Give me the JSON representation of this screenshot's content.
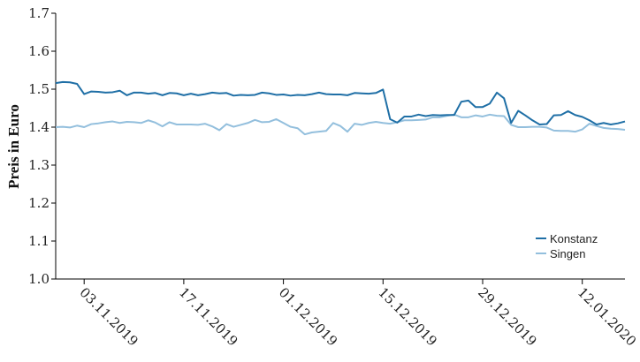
{
  "chart_data": {
    "type": "line",
    "title": "",
    "ylabel": "Preis in Euro",
    "xlabel": "",
    "ylim": [
      1.0,
      1.7
    ],
    "yticks": [
      "1.0",
      "1.1",
      "1.2",
      "1.3",
      "1.4",
      "1.5",
      "1.6",
      "1.7"
    ],
    "xlim": [
      "2019-10-30",
      "2020-01-18"
    ],
    "xticks": [
      {
        "label": "03.11.2019",
        "date": "2019-11-03"
      },
      {
        "label": "17.11.2019",
        "date": "2019-11-17"
      },
      {
        "label": "01.12.2019",
        "date": "2019-12-01"
      },
      {
        "label": "15.12.2019",
        "date": "2019-12-15"
      },
      {
        "label": "29.12.2019",
        "date": "2019-12-29"
      },
      {
        "label": "12.01.2020",
        "date": "2020-01-12"
      }
    ],
    "legend_position": "bottom-right",
    "series": [
      {
        "name": "Konstanz",
        "color": "#1f6fa6",
        "points": [
          [
            "2019-10-30",
            1.516
          ],
          [
            "2019-10-31",
            1.519
          ],
          [
            "2019-11-01",
            1.518
          ],
          [
            "2019-11-02",
            1.514
          ],
          [
            "2019-11-03",
            1.487
          ],
          [
            "2019-11-04",
            1.494
          ],
          [
            "2019-11-05",
            1.493
          ],
          [
            "2019-11-06",
            1.491
          ],
          [
            "2019-11-07",
            1.492
          ],
          [
            "2019-11-08",
            1.496
          ],
          [
            "2019-11-09",
            1.484
          ],
          [
            "2019-11-10",
            1.491
          ],
          [
            "2019-11-11",
            1.491
          ],
          [
            "2019-11-12",
            1.488
          ],
          [
            "2019-11-13",
            1.49
          ],
          [
            "2019-11-14",
            1.484
          ],
          [
            "2019-11-15",
            1.49
          ],
          [
            "2019-11-16",
            1.489
          ],
          [
            "2019-11-17",
            1.484
          ],
          [
            "2019-11-18",
            1.488
          ],
          [
            "2019-11-19",
            1.484
          ],
          [
            "2019-11-20",
            1.487
          ],
          [
            "2019-11-21",
            1.491
          ],
          [
            "2019-11-22",
            1.489
          ],
          [
            "2019-11-23",
            1.49
          ],
          [
            "2019-11-24",
            1.483
          ],
          [
            "2019-11-25",
            1.485
          ],
          [
            "2019-11-26",
            1.484
          ],
          [
            "2019-11-27",
            1.485
          ],
          [
            "2019-11-28",
            1.491
          ],
          [
            "2019-11-29",
            1.489
          ],
          [
            "2019-11-30",
            1.485
          ],
          [
            "2019-12-01",
            1.486
          ],
          [
            "2019-12-02",
            1.483
          ],
          [
            "2019-12-03",
            1.485
          ],
          [
            "2019-12-04",
            1.484
          ],
          [
            "2019-12-05",
            1.487
          ],
          [
            "2019-12-06",
            1.491
          ],
          [
            "2019-12-07",
            1.487
          ],
          [
            "2019-12-08",
            1.486
          ],
          [
            "2019-12-09",
            1.486
          ],
          [
            "2019-12-10",
            1.484
          ],
          [
            "2019-12-11",
            1.49
          ],
          [
            "2019-12-12",
            1.489
          ],
          [
            "2019-12-13",
            1.488
          ],
          [
            "2019-12-14",
            1.49
          ],
          [
            "2019-12-15",
            1.499
          ],
          [
            "2019-12-16",
            1.421
          ],
          [
            "2019-12-17",
            1.412
          ],
          [
            "2019-12-18",
            1.428
          ],
          [
            "2019-12-19",
            1.428
          ],
          [
            "2019-12-20",
            1.433
          ],
          [
            "2019-12-21",
            1.429
          ],
          [
            "2019-12-22",
            1.432
          ],
          [
            "2019-12-23",
            1.431
          ],
          [
            "2019-12-24",
            1.432
          ],
          [
            "2019-12-25",
            1.432
          ],
          [
            "2019-12-26",
            1.467
          ],
          [
            "2019-12-27",
            1.47
          ],
          [
            "2019-12-28",
            1.453
          ],
          [
            "2019-12-29",
            1.453
          ],
          [
            "2019-12-30",
            1.462
          ],
          [
            "2019-12-31",
            1.491
          ],
          [
            "2020-01-01",
            1.476
          ],
          [
            "2020-01-02",
            1.411
          ],
          [
            "2020-01-03",
            1.443
          ],
          [
            "2020-01-04",
            1.431
          ],
          [
            "2020-01-05",
            1.418
          ],
          [
            "2020-01-06",
            1.407
          ],
          [
            "2020-01-07",
            1.408
          ],
          [
            "2020-01-08",
            1.431
          ],
          [
            "2020-01-09",
            1.432
          ],
          [
            "2020-01-10",
            1.442
          ],
          [
            "2020-01-11",
            1.432
          ],
          [
            "2020-01-12",
            1.427
          ],
          [
            "2020-01-13",
            1.418
          ],
          [
            "2020-01-14",
            1.407
          ],
          [
            "2020-01-15",
            1.411
          ],
          [
            "2020-01-16",
            1.407
          ],
          [
            "2020-01-17",
            1.41
          ],
          [
            "2020-01-18",
            1.415
          ]
        ]
      },
      {
        "name": "Singen",
        "color": "#93bfdd",
        "points": [
          [
            "2019-10-30",
            1.4
          ],
          [
            "2019-10-31",
            1.401
          ],
          [
            "2019-11-01",
            1.399
          ],
          [
            "2019-11-02",
            1.404
          ],
          [
            "2019-11-03",
            1.4
          ],
          [
            "2019-11-04",
            1.408
          ],
          [
            "2019-11-05",
            1.41
          ],
          [
            "2019-11-06",
            1.413
          ],
          [
            "2019-11-07",
            1.415
          ],
          [
            "2019-11-08",
            1.411
          ],
          [
            "2019-11-09",
            1.414
          ],
          [
            "2019-11-10",
            1.413
          ],
          [
            "2019-11-11",
            1.411
          ],
          [
            "2019-11-12",
            1.418
          ],
          [
            "2019-11-13",
            1.412
          ],
          [
            "2019-11-14",
            1.402
          ],
          [
            "2019-11-15",
            1.413
          ],
          [
            "2019-11-16",
            1.407
          ],
          [
            "2019-11-17",
            1.407
          ],
          [
            "2019-11-18",
            1.407
          ],
          [
            "2019-11-19",
            1.406
          ],
          [
            "2019-11-20",
            1.409
          ],
          [
            "2019-11-21",
            1.402
          ],
          [
            "2019-11-22",
            1.392
          ],
          [
            "2019-11-23",
            1.408
          ],
          [
            "2019-11-24",
            1.401
          ],
          [
            "2019-11-25",
            1.406
          ],
          [
            "2019-11-26",
            1.411
          ],
          [
            "2019-11-27",
            1.419
          ],
          [
            "2019-11-28",
            1.413
          ],
          [
            "2019-11-29",
            1.414
          ],
          [
            "2019-11-30",
            1.421
          ],
          [
            "2019-12-01",
            1.411
          ],
          [
            "2019-12-02",
            1.401
          ],
          [
            "2019-12-03",
            1.397
          ],
          [
            "2019-12-04",
            1.381
          ],
          [
            "2019-12-05",
            1.386
          ],
          [
            "2019-12-06",
            1.388
          ],
          [
            "2019-12-07",
            1.39
          ],
          [
            "2019-12-08",
            1.411
          ],
          [
            "2019-12-09",
            1.403
          ],
          [
            "2019-12-10",
            1.388
          ],
          [
            "2019-12-11",
            1.409
          ],
          [
            "2019-12-12",
            1.406
          ],
          [
            "2019-12-13",
            1.411
          ],
          [
            "2019-12-14",
            1.414
          ],
          [
            "2019-12-15",
            1.411
          ],
          [
            "2019-12-16",
            1.409
          ],
          [
            "2019-12-17",
            1.413
          ],
          [
            "2019-12-18",
            1.418
          ],
          [
            "2019-12-19",
            1.418
          ],
          [
            "2019-12-20",
            1.419
          ],
          [
            "2019-12-21",
            1.42
          ],
          [
            "2019-12-22",
            1.426
          ],
          [
            "2019-12-23",
            1.426
          ],
          [
            "2019-12-24",
            1.43
          ],
          [
            "2019-12-25",
            1.433
          ],
          [
            "2019-12-26",
            1.426
          ],
          [
            "2019-12-27",
            1.426
          ],
          [
            "2019-12-28",
            1.431
          ],
          [
            "2019-12-29",
            1.428
          ],
          [
            "2019-12-30",
            1.433
          ],
          [
            "2019-12-31",
            1.43
          ],
          [
            "2020-01-01",
            1.429
          ],
          [
            "2020-01-02",
            1.406
          ],
          [
            "2020-01-03",
            1.4
          ],
          [
            "2020-01-04",
            1.4
          ],
          [
            "2020-01-05",
            1.401
          ],
          [
            "2020-01-06",
            1.401
          ],
          [
            "2020-01-07",
            1.399
          ],
          [
            "2020-01-08",
            1.391
          ],
          [
            "2020-01-09",
            1.39
          ],
          [
            "2020-01-10",
            1.39
          ],
          [
            "2020-01-11",
            1.388
          ],
          [
            "2020-01-12",
            1.394
          ],
          [
            "2020-01-13",
            1.409
          ],
          [
            "2020-01-14",
            1.403
          ],
          [
            "2020-01-15",
            1.398
          ],
          [
            "2020-01-16",
            1.396
          ],
          [
            "2020-01-17",
            1.395
          ],
          [
            "2020-01-18",
            1.393
          ]
        ]
      }
    ]
  }
}
